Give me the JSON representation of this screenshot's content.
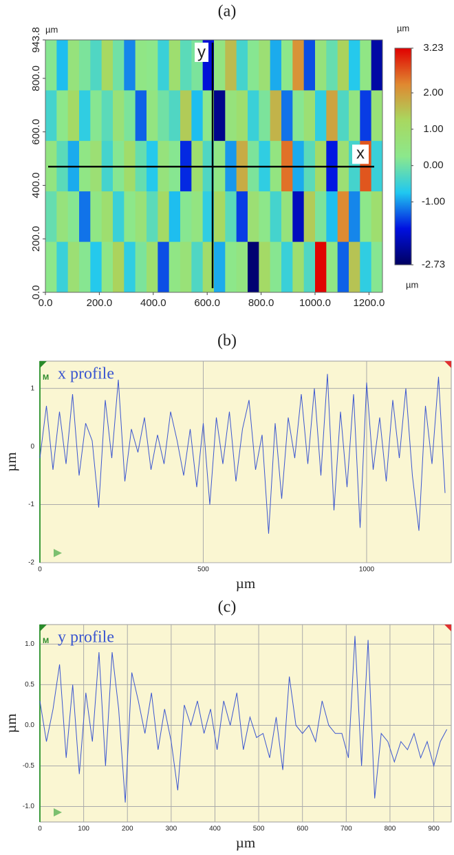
{
  "chart_data": [
    {
      "type": "heatmap",
      "title": "(a)",
      "xlabel": "µm",
      "ylabel": "µm",
      "colorbar_label": "µm",
      "xlim": [
        0,
        1250
      ],
      "ylim": [
        0,
        943.8
      ],
      "xticks": [
        {
          "value": 0,
          "label": "0.0"
        },
        {
          "value": 200,
          "label": "200.0"
        },
        {
          "value": 400,
          "label": "400.0"
        },
        {
          "value": 600,
          "label": "600.0"
        },
        {
          "value": 800,
          "label": "800.0"
        },
        {
          "value": 1000,
          "label": "1000.0"
        },
        {
          "value": 1200,
          "label": "1200.0"
        }
      ],
      "yticks": [
        {
          "value": 0,
          "label": "0.0"
        },
        {
          "value": 200,
          "label": "200.0"
        },
        {
          "value": 400,
          "label": "400.0"
        },
        {
          "value": 600,
          "label": "600.0"
        },
        {
          "value": 800,
          "label": "800.0"
        },
        943.8
      ],
      "clim": [
        -2.73,
        3.23
      ],
      "cticks": [
        3.23,
        {
          "value": 2,
          "label": "2.00"
        },
        {
          "value": 1,
          "label": "1.00"
        },
        {
          "value": 0,
          "label": "0.00"
        },
        {
          "value": -1,
          "label": "-1.00"
        },
        -2.73
      ],
      "colormap": [
        "#000060",
        "#0010e0",
        "#20c8f0",
        "#8ce88c",
        "#a8d860",
        "#e08830",
        "#e00000"
      ],
      "annotations": [
        {
          "text": "y",
          "x": 620
        },
        {
          "text": "x",
          "y": 470
        }
      ],
      "z": [
        [
          0.2,
          -0.8,
          0.6,
          0.1,
          -0.3,
          1.2,
          0.0,
          -1.1,
          0.4,
          0.3,
          -0.5,
          0.9,
          -0.2,
          0.1,
          -1.8,
          0.5,
          1.6,
          -0.4,
          0.2,
          0.8,
          -0.9,
          0.3,
          2.1,
          -1.4,
          0.6,
          -0.1,
          1.3,
          -0.7,
          0.4,
          -2.2
        ],
        [
          -0.4,
          0.3,
          1.1,
          -0.6,
          0.2,
          -0.2,
          0.7,
          0.1,
          -1.3,
          0.5,
          0.0,
          -0.3,
          1.4,
          -0.8,
          0.3,
          -2.4,
          0.6,
          0.9,
          -0.5,
          0.1,
          1.7,
          -1.2,
          0.2,
          0.8,
          -0.6,
          1.9,
          -0.3,
          0.5,
          -1.5,
          0.7
        ],
        [
          0.5,
          -0.2,
          -0.9,
          0.4,
          0.8,
          -0.4,
          0.2,
          1.0,
          -0.1,
          -0.7,
          0.6,
          0.2,
          -1.6,
          0.9,
          -0.3,
          0.4,
          -1.0,
          1.8,
          0.1,
          -0.6,
          0.5,
          2.4,
          -0.9,
          -0.2,
          1.1,
          -1.7,
          0.8,
          -0.4,
          2.6,
          -0.5
        ],
        [
          -0.1,
          0.6,
          0.2,
          -1.2,
          0.4,
          0.9,
          -0.5,
          0.3,
          0.7,
          -0.2,
          1.1,
          -0.8,
          0.2,
          0.5,
          -0.6,
          1.2,
          -0.2,
          -1.5,
          0.8,
          0.3,
          -0.4,
          0.6,
          -2.0,
          1.4,
          0.1,
          -0.8,
          2.2,
          -1.1,
          0.3,
          0.9
        ],
        [
          0.3,
          -0.5,
          0.8,
          0.2,
          -0.7,
          0.4,
          1.3,
          -0.6,
          0.1,
          0.9,
          -1.4,
          0.4,
          0.7,
          -0.3,
          1.0,
          -0.9,
          0.3,
          0.5,
          -2.6,
          1.1,
          0.2,
          -0.5,
          0.9,
          -0.3,
          3.2,
          0.4,
          -1.3,
          1.5,
          -0.6,
          0.2
        ]
      ]
    },
    {
      "type": "line",
      "title": "(b)",
      "xlabel": "µm",
      "ylabel": "µm",
      "marker": "M",
      "background": "#faf6d2",
      "grid": true,
      "xlim": [
        0,
        1259
      ],
      "ylim": [
        -2,
        1.47
      ],
      "xticks": [
        0,
        500,
        1000
      ],
      "yticks": [
        -2,
        -1,
        0,
        1
      ],
      "x": [
        0,
        20,
        40,
        60,
        80,
        100,
        120,
        140,
        160,
        180,
        200,
        220,
        240,
        260,
        280,
        300,
        320,
        340,
        360,
        380,
        400,
        420,
        440,
        460,
        480,
        500,
        520,
        540,
        560,
        580,
        600,
        620,
        640,
        660,
        680,
        700,
        720,
        740,
        760,
        780,
        800,
        820,
        840,
        860,
        880,
        900,
        920,
        940,
        960,
        980,
        1000,
        1020,
        1040,
        1060,
        1080,
        1100,
        1120,
        1140,
        1160,
        1180,
        1200,
        1220,
        1240
      ],
      "series": [
        {
          "name": "x profile",
          "color": "#3a55d0",
          "values": [
            -0.2,
            0.7,
            -0.4,
            0.6,
            -0.3,
            0.9,
            -0.5,
            0.4,
            0.1,
            -1.05,
            0.8,
            -0.2,
            1.15,
            -0.6,
            0.3,
            -0.1,
            0.5,
            -0.4,
            0.2,
            -0.3,
            0.6,
            0.1,
            -0.5,
            0.3,
            -0.7,
            0.4,
            -1.0,
            0.5,
            -0.3,
            0.6,
            -0.6,
            0.3,
            0.8,
            -0.4,
            0.2,
            -1.5,
            0.4,
            -0.9,
            0.5,
            -0.2,
            0.9,
            -0.3,
            1.0,
            -0.5,
            1.25,
            -1.1,
            0.6,
            -0.7,
            0.9,
            -1.4,
            1.1,
            -0.4,
            0.5,
            -0.6,
            0.8,
            -0.2,
            1.0,
            -0.5,
            -1.45,
            0.7,
            -0.3,
            1.2,
            -0.8
          ]
        }
      ]
    },
    {
      "type": "line",
      "title": "(c)",
      "xlabel": "µm",
      "ylabel": "µm",
      "marker": "M",
      "background": "#faf6d2",
      "grid": true,
      "xlim": [
        0,
        940
      ],
      "ylim": [
        -1.19,
        1.24
      ],
      "xticks": [
        0,
        100,
        200,
        300,
        400,
        500,
        600,
        700,
        800,
        900
      ],
      "yticks": [
        {
          "value": -1,
          "label": "-1.0"
        },
        -0.5,
        {
          "value": 0,
          "label": "0.0"
        },
        0.5,
        {
          "value": 1,
          "label": "1.0"
        }
      ],
      "x": [
        0,
        15,
        30,
        45,
        60,
        75,
        90,
        105,
        120,
        135,
        150,
        165,
        180,
        195,
        210,
        225,
        240,
        255,
        270,
        285,
        300,
        315,
        330,
        345,
        360,
        375,
        390,
        405,
        420,
        435,
        450,
        465,
        480,
        495,
        510,
        525,
        540,
        555,
        570,
        585,
        600,
        615,
        630,
        645,
        660,
        675,
        690,
        705,
        720,
        735,
        750,
        765,
        780,
        795,
        810,
        825,
        840,
        855,
        870,
        885,
        900,
        915,
        930
      ],
      "series": [
        {
          "name": "y profile",
          "color": "#3a55d0",
          "values": [
            0.3,
            -0.2,
            0.2,
            0.75,
            -0.4,
            0.5,
            -0.6,
            0.4,
            -0.2,
            0.9,
            -0.5,
            0.9,
            0.2,
            -0.95,
            0.65,
            0.3,
            -0.1,
            0.4,
            -0.3,
            0.2,
            -0.2,
            -0.8,
            0.25,
            0.0,
            0.3,
            -0.1,
            0.2,
            -0.3,
            0.3,
            0.0,
            0.4,
            -0.3,
            0.1,
            -0.15,
            -0.1,
            -0.4,
            0.1,
            -0.55,
            0.6,
            0.0,
            -0.1,
            0.0,
            -0.2,
            0.3,
            0.0,
            -0.1,
            -0.1,
            -0.4,
            1.1,
            -0.5,
            1.05,
            -0.9,
            -0.1,
            -0.2,
            -0.45,
            -0.2,
            -0.3,
            -0.1,
            -0.4,
            -0.2,
            -0.5,
            -0.2,
            -0.05
          ]
        }
      ]
    }
  ]
}
